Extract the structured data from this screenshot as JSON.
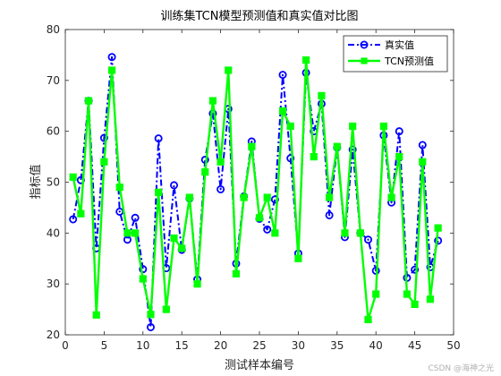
{
  "chart_data": {
    "type": "line",
    "title": "训练集TCN模型预测值和真实值对比图",
    "xlabel": "测试样本编号",
    "ylabel": "指标值",
    "xlim": [
      0,
      50
    ],
    "ylim": [
      20,
      80
    ],
    "xticks": [
      0,
      5,
      10,
      15,
      20,
      25,
      30,
      35,
      40,
      45,
      50
    ],
    "yticks": [
      20,
      30,
      40,
      50,
      60,
      70,
      80
    ],
    "grid": false,
    "legend_position": "top-right",
    "x": [
      1,
      2,
      3,
      4,
      5,
      6,
      7,
      8,
      9,
      10,
      11,
      12,
      13,
      14,
      15,
      16,
      17,
      18,
      19,
      20,
      21,
      22,
      23,
      24,
      25,
      26,
      27,
      28,
      29,
      30,
      31,
      32,
      33,
      34,
      35,
      36,
      37,
      38,
      39,
      40,
      41,
      42,
      43,
      44,
      45,
      46,
      47,
      48
    ],
    "series": [
      {
        "name": "真实值",
        "color": "#0000ff",
        "line_style": "dash-dot",
        "marker": "circle",
        "values": [
          42.7,
          50.4,
          66.0,
          37.0,
          58.7,
          74.6,
          44.2,
          38.7,
          43.0,
          32.9,
          21.5,
          58.6,
          33.1,
          49.4,
          36.7,
          46.8,
          30.9,
          54.4,
          63.5,
          48.6,
          64.4,
          34.0,
          47.2,
          58.0,
          42.8,
          40.7,
          46.6,
          71.1,
          54.7,
          36.0,
          71.5,
          60.0,
          65.4,
          43.5,
          56.8,
          39.2,
          56.4,
          40.0,
          38.7,
          32.6,
          59.2,
          46.0,
          60.0,
          31.2,
          32.8,
          57.3,
          33.3,
          38.5
        ]
      },
      {
        "name": "TCN预测值",
        "color": "#00ff00",
        "line_style": "solid",
        "marker": "square",
        "values": [
          51.0,
          43.8,
          66.0,
          23.9,
          54.0,
          72.0,
          49.0,
          40.0,
          40.0,
          31.0,
          24.0,
          48.0,
          25.0,
          39.0,
          37.0,
          47.0,
          30.0,
          52.0,
          66.0,
          54.0,
          72.0,
          32.0,
          47.0,
          57.0,
          43.0,
          47.0,
          40.0,
          64.0,
          61.0,
          35.0,
          74.0,
          55.0,
          67.0,
          47.0,
          57.0,
          40.0,
          61.0,
          40.0,
          23.0,
          28.0,
          61.0,
          47.0,
          55.0,
          28.0,
          26.0,
          54.0,
          27.0,
          41.0
        ]
      }
    ]
  },
  "watermark": "CSDN @海神之光"
}
